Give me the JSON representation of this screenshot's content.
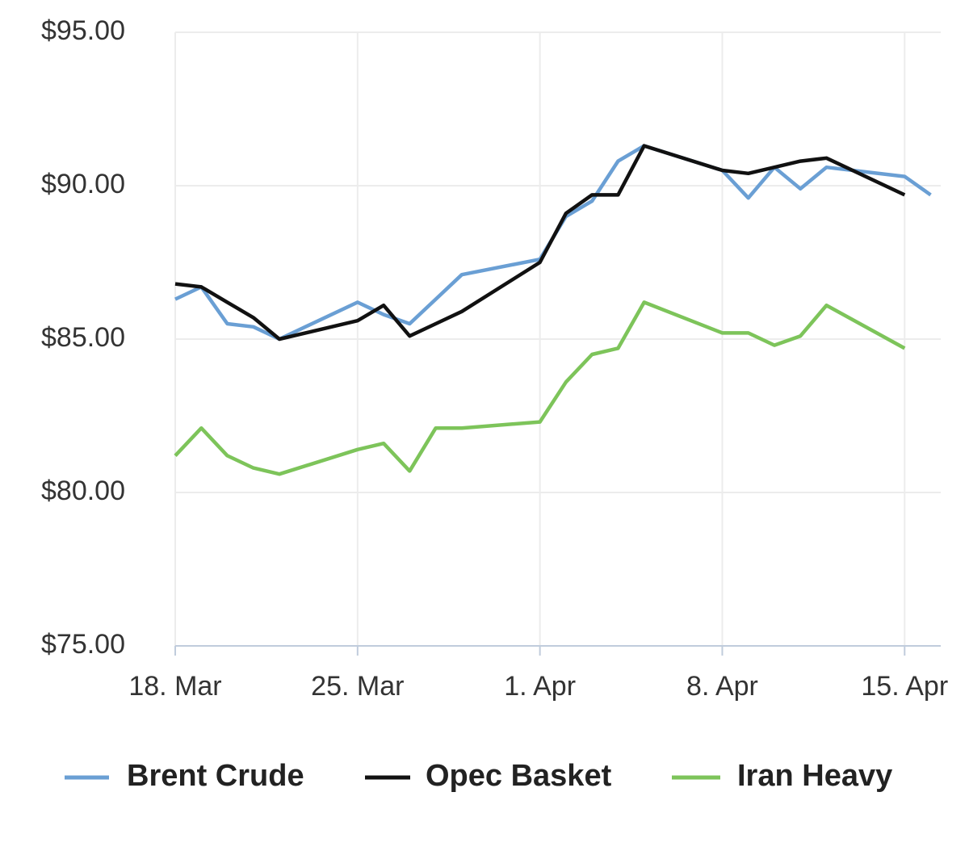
{
  "chart_data": {
    "type": "line",
    "x": [
      "18. Mar",
      "19. Mar",
      "20. Mar",
      "21. Mar",
      "22. Mar",
      "25. Mar",
      "26. Mar",
      "27. Mar",
      "28. Mar",
      "29. Mar",
      "1. Apr",
      "2. Apr",
      "3. Apr",
      "4. Apr",
      "5. Apr",
      "8. Apr",
      "9. Apr",
      "10. Apr",
      "11. Apr",
      "12. Apr",
      "15. Apr",
      "16. Apr"
    ],
    "series": [
      {
        "name": "Brent Crude",
        "color": "#6a9fd4",
        "values": [
          86.3,
          86.7,
          85.5,
          85.4,
          85.0,
          86.2,
          85.8,
          85.5,
          86.3,
          87.1,
          87.6,
          89.0,
          89.5,
          90.8,
          91.3,
          90.5,
          89.6,
          90.6,
          89.9,
          90.6,
          90.3,
          89.7
        ]
      },
      {
        "name": "Opec Basket",
        "color": "#111111",
        "values": [
          86.8,
          86.7,
          86.2,
          85.7,
          85.0,
          85.6,
          86.1,
          85.1,
          85.5,
          85.9,
          87.5,
          89.1,
          89.7,
          89.7,
          91.3,
          90.5,
          90.4,
          90.6,
          90.8,
          90.9,
          89.7,
          null
        ]
      },
      {
        "name": "Iran Heavy",
        "color": "#7dc45a",
        "values": [
          81.2,
          82.1,
          81.2,
          80.8,
          80.6,
          81.4,
          81.6,
          80.7,
          82.1,
          82.1,
          82.3,
          83.6,
          84.5,
          84.7,
          86.2,
          85.2,
          85.2,
          84.8,
          85.1,
          86.1,
          84.7,
          null
        ]
      }
    ],
    "ylim": [
      75,
      95
    ],
    "yticks": [
      {
        "value": 75,
        "label": "$75.00"
      },
      {
        "value": 80,
        "label": "$80.00"
      },
      {
        "value": 85,
        "label": "$85.00"
      },
      {
        "value": 90,
        "label": "$90.00"
      },
      {
        "value": 95,
        "label": "$95.00"
      }
    ],
    "xticks": [
      "18. Mar",
      "25. Mar",
      "1. Apr",
      "8. Apr",
      "15. Apr"
    ],
    "grid": true
  }
}
